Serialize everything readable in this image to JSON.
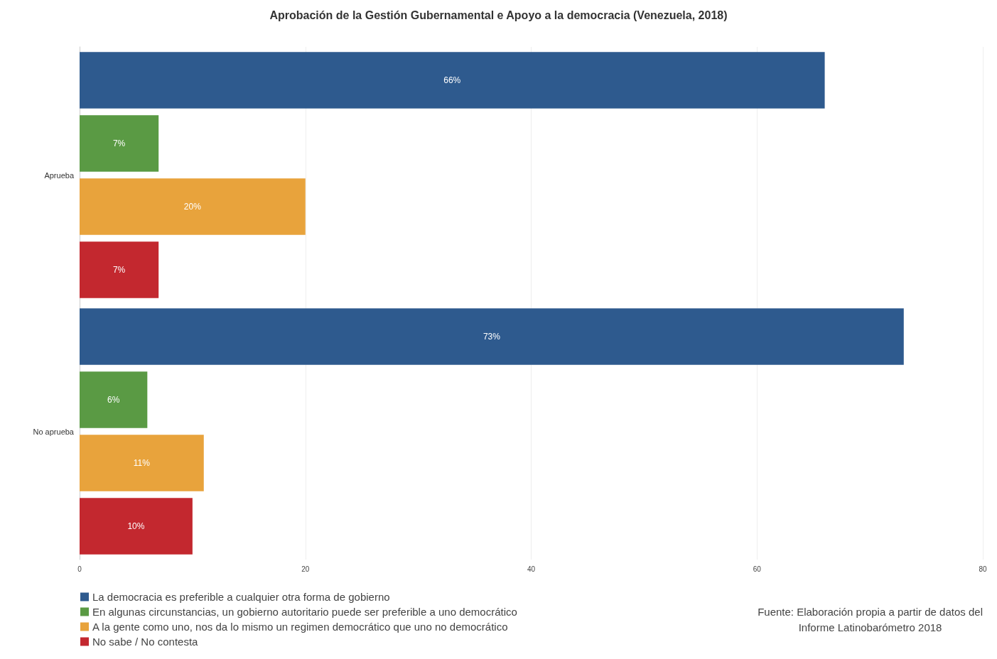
{
  "chart_data": {
    "type": "bar",
    "orientation": "horizontal",
    "title": "Aprobación de la Gestión Gubernamental e Apoyo a la democracia (Venezuela, 2018)",
    "categories": [
      "Aprueba",
      "No aprueba"
    ],
    "series": [
      {
        "name": "La democracia es preferible a cualquier otra forma de gobierno",
        "color": "#2e5a8e",
        "values": [
          66,
          73
        ],
        "value_labels": [
          "66%",
          "73%"
        ]
      },
      {
        "name": "En algunas circunstancias, un gobierno autoritario puede ser preferible a uno democrático",
        "color": "#5a9a44",
        "values": [
          7,
          6
        ],
        "value_labels": [
          "7%",
          "6%"
        ]
      },
      {
        "name": "A la gente como uno, nos da lo mismo un regimen democrático que uno no democrático",
        "color": "#e8a33c",
        "values": [
          20,
          11
        ],
        "value_labels": [
          "20%",
          "11%"
        ]
      },
      {
        "name": "No sabe / No contesta",
        "color": "#c3282f",
        "values": [
          7,
          10
        ],
        "value_labels": [
          "7%",
          "10%"
        ]
      }
    ],
    "xlim": [
      0,
      80
    ],
    "xticks": [
      0,
      20,
      40,
      60,
      80
    ],
    "grid": "x",
    "legend": "bottom left",
    "annotations": [
      "Fuente: Elaboración propia a partir de datos del\nInforme Latinobarómetro 2018"
    ]
  }
}
